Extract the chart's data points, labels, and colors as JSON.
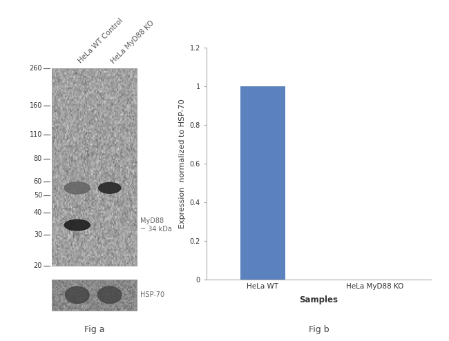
{
  "fig_title_a": "Fig a",
  "fig_title_b": "Fig b",
  "lane_labels": [
    "HeLa WT Control",
    "HeLa MyD88 KO"
  ],
  "mw_markers": [
    260,
    160,
    110,
    80,
    60,
    50,
    40,
    30,
    20
  ],
  "myd88_label": "MyD88\n~ 34 kDa",
  "hsp70_label": "HSP-70",
  "bar_categories": [
    "HeLa WT",
    "HeLa MyD88 KO"
  ],
  "bar_values": [
    1.0,
    0.0
  ],
  "bar_color": "#5b82be",
  "ylabel": "Expression  normalized to HSP-70",
  "xlabel": "Samples",
  "ylim": [
    0,
    1.2
  ],
  "yticks": [
    0,
    0.2,
    0.4,
    0.6,
    0.8,
    1.0,
    1.2
  ],
  "bg_color": "#ffffff",
  "blot_bg_light": "#e8e8e8",
  "blot_bg_hsp": "#c8c8c8",
  "label_fontsize": 8,
  "tick_fontsize": 7,
  "axis_fontsize": 8
}
